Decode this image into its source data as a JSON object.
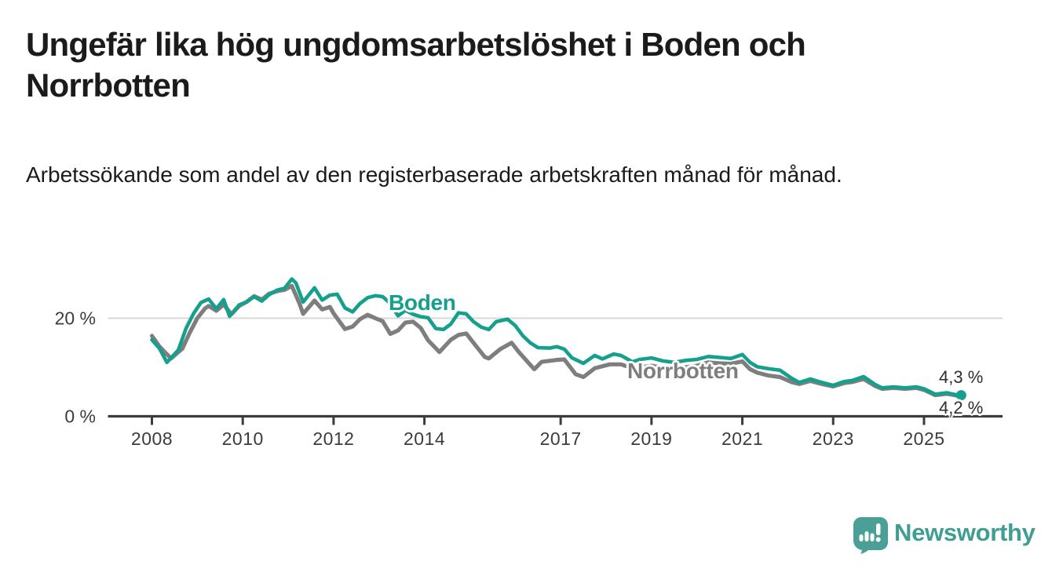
{
  "header": {
    "title": "Ungefär lika hög ungdomsarbetslöshet i Boden och Norrbotten",
    "subtitle": "Arbetssökande som andel av den registerbaserade arbetskraften månad för månad."
  },
  "footer": {
    "brand": "Newsworthy",
    "logo_icon": "speech-bubble-bar-chart-exclamation",
    "brand_color": "#3f9e92",
    "logo_fill": "#4aa096"
  },
  "chart_data": {
    "type": "line",
    "unit": "%",
    "grid": "horizontal-20-only",
    "legend_position": "inline-labels-on-lines",
    "x_axis": {
      "ticks": [
        {
          "year": 2008,
          "label": "2008"
        },
        {
          "year": 2010,
          "label": "2010"
        },
        {
          "year": 2012,
          "label": "2012"
        },
        {
          "year": 2014,
          "label": "2014"
        },
        {
          "year": 2017,
          "label": "2017"
        },
        {
          "year": 2019,
          "label": "2019"
        },
        {
          "year": 2021,
          "label": "2021"
        },
        {
          "year": 2023,
          "label": "2023"
        },
        {
          "year": 2025,
          "label": "2025"
        }
      ],
      "range": [
        2007.03,
        2026.73
      ]
    },
    "y_axis": {
      "ticks": [
        {
          "value": 0,
          "label": "0 %"
        },
        {
          "value": 20,
          "label": "20 %"
        }
      ],
      "gridlines": [
        20
      ],
      "range": [
        0,
        32
      ]
    },
    "axis_color": "#3c3c3c",
    "grid_color": "#d8d8d8",
    "tick_label_color": "#3c3c3c",
    "series": [
      {
        "name": "Norrbotten",
        "color": "#7e7e7e",
        "end_label": "4,2 %",
        "end_dot": false,
        "points": [
          [
            2008.0,
            16.4
          ],
          [
            2008.17,
            14.2
          ],
          [
            2008.42,
            11.8
          ],
          [
            2008.67,
            13.8
          ],
          [
            2008.83,
            17.0
          ],
          [
            2009.0,
            20.0
          ],
          [
            2009.17,
            22.0
          ],
          [
            2009.25,
            22.5
          ],
          [
            2009.42,
            21.5
          ],
          [
            2009.58,
            22.8
          ],
          [
            2009.75,
            20.8
          ],
          [
            2009.92,
            22.5
          ],
          [
            2010.08,
            23.3
          ],
          [
            2010.25,
            24.5
          ],
          [
            2010.42,
            23.8
          ],
          [
            2010.58,
            25.0
          ],
          [
            2010.75,
            25.5
          ],
          [
            2010.92,
            25.8
          ],
          [
            2011.08,
            26.6
          ],
          [
            2011.25,
            23.0
          ],
          [
            2011.33,
            20.9
          ],
          [
            2011.58,
            23.6
          ],
          [
            2011.75,
            21.8
          ],
          [
            2011.92,
            22.3
          ],
          [
            2012.0,
            21.0
          ],
          [
            2012.25,
            17.8
          ],
          [
            2012.42,
            18.3
          ],
          [
            2012.58,
            19.8
          ],
          [
            2012.75,
            20.7
          ],
          [
            2012.92,
            20.0
          ],
          [
            2013.08,
            19.4
          ],
          [
            2013.25,
            16.8
          ],
          [
            2013.42,
            17.5
          ],
          [
            2013.58,
            19.1
          ],
          [
            2013.75,
            19.3
          ],
          [
            2013.92,
            18.0
          ],
          [
            2014.08,
            15.5
          ],
          [
            2014.33,
            13.1
          ],
          [
            2014.58,
            15.6
          ],
          [
            2014.75,
            16.6
          ],
          [
            2014.92,
            16.9
          ],
          [
            2015.08,
            15.0
          ],
          [
            2015.33,
            12.1
          ],
          [
            2015.42,
            11.8
          ],
          [
            2015.67,
            13.7
          ],
          [
            2015.92,
            15.0
          ],
          [
            2016.08,
            13.1
          ],
          [
            2016.33,
            10.5
          ],
          [
            2016.42,
            9.6
          ],
          [
            2016.58,
            11.1
          ],
          [
            2016.83,
            11.4
          ],
          [
            2016.92,
            11.5
          ],
          [
            2017.08,
            11.6
          ],
          [
            2017.33,
            8.6
          ],
          [
            2017.5,
            8.0
          ],
          [
            2017.75,
            9.8
          ],
          [
            2018.08,
            10.6
          ],
          [
            2018.33,
            10.6
          ],
          [
            2018.58,
            9.8
          ],
          [
            2018.83,
            10.1
          ],
          [
            2019.0,
            10.3
          ],
          [
            2019.25,
            9.9
          ],
          [
            2019.5,
            9.6
          ],
          [
            2019.75,
            10.0
          ],
          [
            2020.0,
            10.3
          ],
          [
            2020.25,
            11.0
          ],
          [
            2020.5,
            10.8
          ],
          [
            2020.75,
            10.7
          ],
          [
            2021.0,
            11.2
          ],
          [
            2021.17,
            9.6
          ],
          [
            2021.33,
            8.9
          ],
          [
            2021.58,
            8.3
          ],
          [
            2021.83,
            8.0
          ],
          [
            2022.08,
            7.0
          ],
          [
            2022.25,
            6.6
          ],
          [
            2022.5,
            7.2
          ],
          [
            2022.75,
            6.6
          ],
          [
            2023.0,
            6.1
          ],
          [
            2023.25,
            6.8
          ],
          [
            2023.42,
            7.0
          ],
          [
            2023.67,
            7.6
          ],
          [
            2023.92,
            6.2
          ],
          [
            2024.08,
            5.6
          ],
          [
            2024.33,
            5.8
          ],
          [
            2024.58,
            5.6
          ],
          [
            2024.83,
            5.8
          ],
          [
            2025.0,
            5.4
          ],
          [
            2025.25,
            4.3
          ],
          [
            2025.5,
            4.6
          ],
          [
            2025.75,
            4.2
          ]
        ]
      },
      {
        "name": "Boden",
        "color": "#15a08e",
        "end_label": "4,3 %",
        "end_dot": true,
        "points": [
          [
            2008.0,
            15.6
          ],
          [
            2008.17,
            13.8
          ],
          [
            2008.33,
            11.0
          ],
          [
            2008.58,
            13.5
          ],
          [
            2008.75,
            17.9
          ],
          [
            2008.92,
            21.0
          ],
          [
            2009.08,
            23.2
          ],
          [
            2009.25,
            23.9
          ],
          [
            2009.42,
            21.9
          ],
          [
            2009.58,
            23.8
          ],
          [
            2009.71,
            20.4
          ],
          [
            2009.92,
            22.7
          ],
          [
            2010.08,
            23.3
          ],
          [
            2010.25,
            24.4
          ],
          [
            2010.42,
            23.5
          ],
          [
            2010.58,
            24.8
          ],
          [
            2010.75,
            25.7
          ],
          [
            2010.92,
            26.1
          ],
          [
            2011.08,
            28.0
          ],
          [
            2011.17,
            27.2
          ],
          [
            2011.33,
            23.3
          ],
          [
            2011.58,
            26.2
          ],
          [
            2011.75,
            23.7
          ],
          [
            2011.92,
            24.7
          ],
          [
            2012.08,
            24.9
          ],
          [
            2012.25,
            22.1
          ],
          [
            2012.42,
            21.3
          ],
          [
            2012.58,
            23.0
          ],
          [
            2012.75,
            24.2
          ],
          [
            2012.92,
            24.6
          ],
          [
            2013.08,
            24.4
          ],
          [
            2013.25,
            23.0
          ],
          [
            2013.42,
            20.5
          ],
          [
            2013.58,
            21.6
          ],
          [
            2013.75,
            20.8
          ],
          [
            2013.92,
            20.3
          ],
          [
            2014.08,
            20.1
          ],
          [
            2014.25,
            17.9
          ],
          [
            2014.42,
            17.7
          ],
          [
            2014.58,
            18.8
          ],
          [
            2014.75,
            21.1
          ],
          [
            2014.92,
            20.9
          ],
          [
            2015.08,
            19.3
          ],
          [
            2015.25,
            18.2
          ],
          [
            2015.42,
            17.7
          ],
          [
            2015.58,
            19.3
          ],
          [
            2015.83,
            19.8
          ],
          [
            2016.0,
            18.5
          ],
          [
            2016.17,
            16.4
          ],
          [
            2016.33,
            15.0
          ],
          [
            2016.5,
            14.0
          ],
          [
            2016.75,
            13.9
          ],
          [
            2016.92,
            14.2
          ],
          [
            2017.08,
            13.7
          ],
          [
            2017.25,
            11.9
          ],
          [
            2017.5,
            10.8
          ],
          [
            2017.75,
            12.4
          ],
          [
            2017.92,
            11.7
          ],
          [
            2018.17,
            12.7
          ],
          [
            2018.33,
            12.4
          ],
          [
            2018.58,
            11.1
          ],
          [
            2018.75,
            11.6
          ],
          [
            2019.0,
            11.9
          ],
          [
            2019.25,
            11.3
          ],
          [
            2019.5,
            11.0
          ],
          [
            2019.75,
            11.4
          ],
          [
            2020.0,
            11.6
          ],
          [
            2020.25,
            12.2
          ],
          [
            2020.5,
            12.0
          ],
          [
            2020.75,
            11.8
          ],
          [
            2021.0,
            12.6
          ],
          [
            2021.17,
            11.0
          ],
          [
            2021.33,
            10.1
          ],
          [
            2021.58,
            9.7
          ],
          [
            2021.83,
            9.4
          ],
          [
            2022.08,
            7.8
          ],
          [
            2022.25,
            6.9
          ],
          [
            2022.5,
            7.6
          ],
          [
            2022.75,
            6.9
          ],
          [
            2023.0,
            6.3
          ],
          [
            2023.25,
            7.1
          ],
          [
            2023.42,
            7.3
          ],
          [
            2023.67,
            8.1
          ],
          [
            2023.92,
            6.5
          ],
          [
            2024.08,
            5.8
          ],
          [
            2024.33,
            6.0
          ],
          [
            2024.58,
            5.8
          ],
          [
            2024.83,
            6.0
          ],
          [
            2025.0,
            5.6
          ],
          [
            2025.25,
            4.5
          ],
          [
            2025.5,
            4.8
          ],
          [
            2025.75,
            4.3
          ]
        ]
      }
    ]
  }
}
